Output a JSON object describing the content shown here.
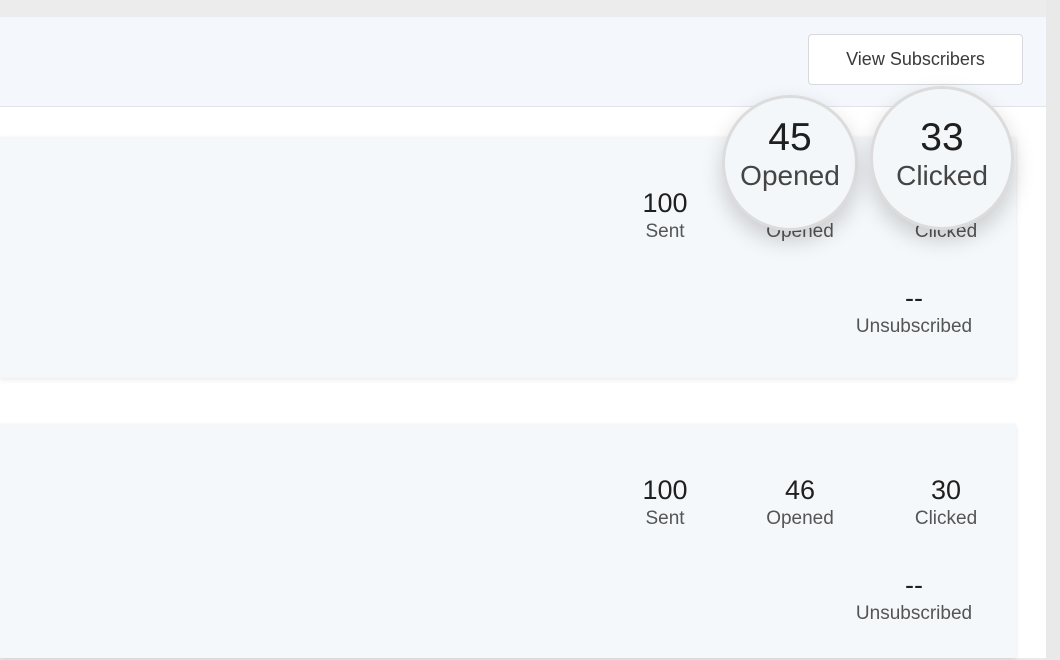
{
  "header": {
    "view_subscribers_label": "View Subscribers"
  },
  "campaigns": [
    {
      "sent": {
        "value": "100",
        "label": "Sent"
      },
      "opened": {
        "value": "45",
        "label": "Opened"
      },
      "clicked": {
        "value": "33",
        "label": "Clicked"
      },
      "unsubscribed": {
        "value": "--",
        "label": "Unsubscribed"
      }
    },
    {
      "sent": {
        "value": "100",
        "label": "Sent"
      },
      "opened": {
        "value": "46",
        "label": "Opened"
      },
      "clicked": {
        "value": "30",
        "label": "Clicked"
      },
      "unsubscribed": {
        "value": "--",
        "label": "Unsubscribed"
      }
    }
  ]
}
